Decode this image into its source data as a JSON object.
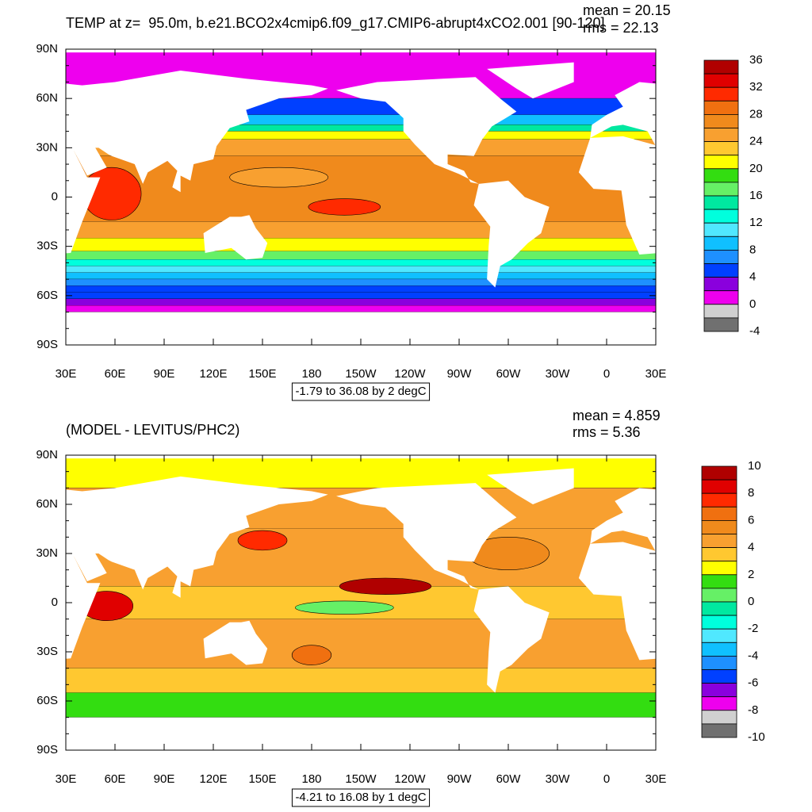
{
  "panels": [
    {
      "title": "TEMP at z=  95.0m, b.e21.BCO2x4cmip6.f09_g17.CMIP6-abrupt4xCO2.001 [90-120]",
      "stats": [
        "mean = 20.15",
        "rms = 22.13"
      ],
      "lat_labels": [
        "90N",
        "60N",
        "30N",
        "0",
        "30S",
        "60S",
        "90S"
      ],
      "lon_labels": [
        "30E",
        "60E",
        "90E",
        "120E",
        "150E",
        "180",
        "150W",
        "120W",
        "90W",
        "60W",
        "30W",
        "0",
        "30E"
      ],
      "range_label": "-1.79 to 36.08 by 2 degC",
      "colorbar": {
        "labels": [
          36,
          32,
          28,
          24,
          20,
          16,
          12,
          8,
          4,
          0,
          -4
        ],
        "colors": [
          "#b00000",
          "#e00000",
          "#ff2a00",
          "#f07010",
          "#f08a1c",
          "#f8a030",
          "#ffc830",
          "#ffff00",
          "#33dd11",
          "#66f066",
          "#00e8a0",
          "#00ffdd",
          "#50e8ff",
          "#10c0ff",
          "#1e90ff",
          "#0040ff",
          "#8a00dd",
          "#ee00ee",
          "#d0d0d0",
          "#707070"
        ]
      }
    },
    {
      "title": "(MODEL - LEVITUS/PHC2)",
      "stats": [
        "mean = 4.859",
        "rms = 5.36"
      ],
      "lat_labels": [
        "90N",
        "60N",
        "30N",
        "0",
        "30S",
        "60S",
        "90S"
      ],
      "lon_labels": [
        "30E",
        "60E",
        "90E",
        "120E",
        "150E",
        "180",
        "150W",
        "120W",
        "90W",
        "60W",
        "30W",
        "0",
        "30E"
      ],
      "range_label": "-4.21 to 16.08 by 1 degC",
      "colorbar": {
        "labels": [
          10,
          8,
          6,
          4,
          2,
          0,
          -2,
          -4,
          -6,
          -8,
          -10
        ],
        "colors": [
          "#b00000",
          "#e00000",
          "#ff2a00",
          "#f07010",
          "#f08a1c",
          "#f8a030",
          "#ffc830",
          "#ffff00",
          "#33dd11",
          "#66f066",
          "#00e8a0",
          "#00ffdd",
          "#50e8ff",
          "#10c0ff",
          "#1e90ff",
          "#0040ff",
          "#8a00dd",
          "#ee00ee",
          "#d0d0d0",
          "#707070"
        ]
      }
    }
  ]
}
